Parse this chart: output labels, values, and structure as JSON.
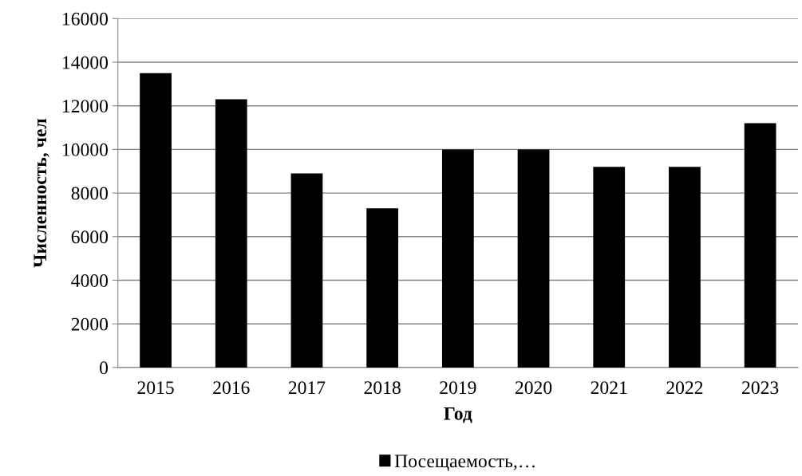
{
  "chart_data": {
    "type": "bar",
    "xlabel": "Год",
    "ylabel": "Численность, чел",
    "categories": [
      "2015",
      "2016",
      "2017",
      "2018",
      "2019",
      "2020",
      "2021",
      "2022",
      "2023"
    ],
    "series": [
      {
        "name": "Посещаемость,…",
        "color": "#000000",
        "values": [
          13500,
          12300,
          8900,
          7300,
          10000,
          10000,
          9200,
          9200,
          11200
        ]
      }
    ],
    "ylim": [
      0,
      16000
    ],
    "yticks": [
      0,
      2000,
      4000,
      6000,
      8000,
      10000,
      12000,
      14000,
      16000
    ],
    "grid": "y",
    "legend": "bottom"
  }
}
